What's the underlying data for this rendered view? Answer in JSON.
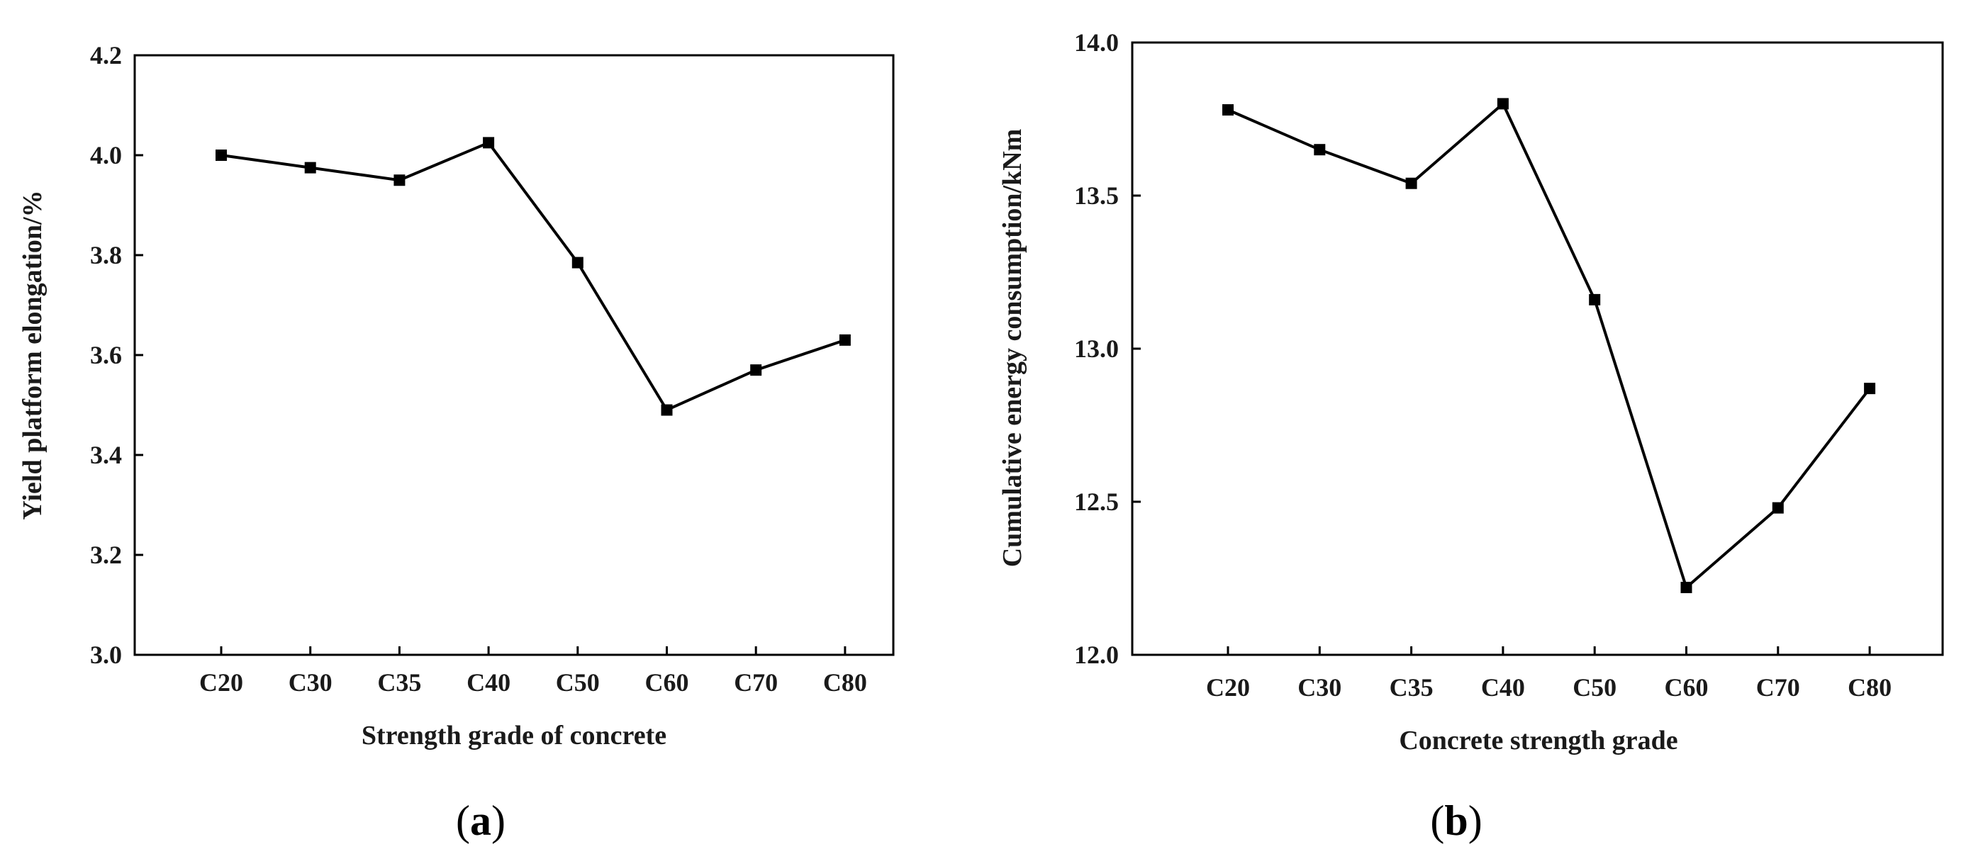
{
  "colors": {
    "line": "#000000",
    "axis": "#000000",
    "background": "#ffffff"
  },
  "chart_data": [
    {
      "type": "line",
      "panel_label": "a",
      "title": "",
      "xlabel": "Strength grade of concrete",
      "ylabel": "Yield platform elongation/%",
      "categories": [
        "C20",
        "C30",
        "C35",
        "C40",
        "C50",
        "C60",
        "C70",
        "C80"
      ],
      "series": [
        {
          "name": "Yield platform elongation",
          "marker": "square",
          "values": [
            4.0,
            3.975,
            3.95,
            4.025,
            3.785,
            3.49,
            3.57,
            3.63
          ]
        }
      ],
      "ylim": [
        3.0,
        4.2
      ],
      "yticks": [
        "3.0",
        "3.2",
        "3.4",
        "3.6",
        "3.8",
        "4.0",
        "4.2"
      ],
      "grid": false,
      "legend": "none"
    },
    {
      "type": "line",
      "panel_label": "b",
      "title": "",
      "xlabel": "Concrete strength grade",
      "ylabel": "Cumulative energy consumption/kNm",
      "categories": [
        "C20",
        "C30",
        "C35",
        "C40",
        "C50",
        "C60",
        "C70",
        "C80"
      ],
      "series": [
        {
          "name": "Cumulative energy consumption",
          "marker": "square",
          "values": [
            13.78,
            13.65,
            13.54,
            13.8,
            13.16,
            12.22,
            12.48,
            12.87
          ]
        }
      ],
      "ylim": [
        12.0,
        14.0
      ],
      "yticks": [
        "12.0",
        "12.5",
        "13.0",
        "13.5",
        "14.0"
      ],
      "grid": false,
      "legend": "none"
    }
  ]
}
